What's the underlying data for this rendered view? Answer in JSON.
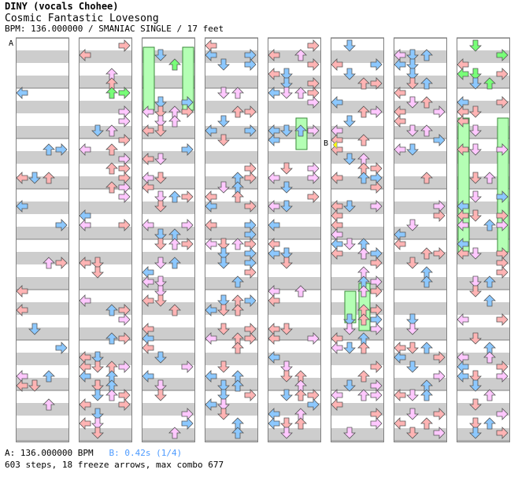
{
  "artist_title": "DINY (vocals Chohee)",
  "song_title": "Cosmic Fantastic Lovesong",
  "meta_line": "BPM: 136.000000 / SMANIAC SINGLE / 17 feet",
  "markers": {
    "a": "A",
    "b": "B"
  },
  "footer": {
    "a_text": "A: 136.000000 BPM",
    "b_text": "B: 0.42s (1/4)",
    "stats": "603 steps, 18 freeze arrows, max combo 677"
  },
  "colors": {
    "stripe": "#cdcdcd",
    "border": "#808080",
    "arrow_red": "#ffb4b4",
    "arrow_blue": "#8cc8ff",
    "arrow_pink": "#ffc8ff",
    "arrow_green": "#78ff78",
    "freeze_body": "#b4ffb4",
    "stop_marker": "#ffff00"
  },
  "lanes": [
    "left",
    "down",
    "up",
    "right"
  ],
  "icons": {
    "arrow": "arrow-icon",
    "freeze": "freeze-arrow-icon",
    "stop": "stop-marker-icon"
  }
}
